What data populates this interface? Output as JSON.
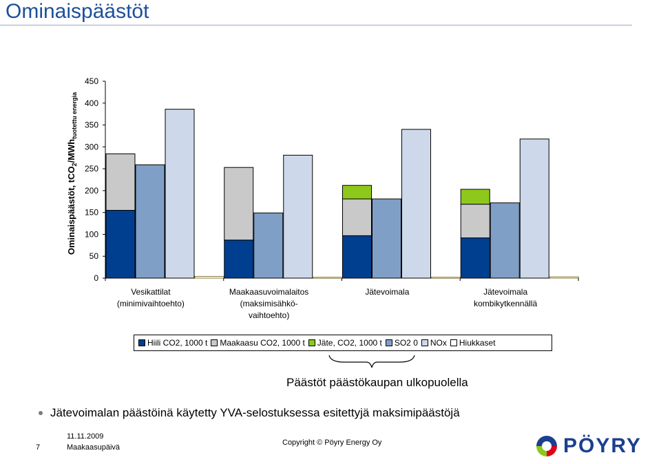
{
  "title": "Ominaispäästöt",
  "chart_data": {
    "type": "bar",
    "stacked_groups": true,
    "ylabel": "Ominaispäästöt, tCO2/MWhtuotettu energia",
    "ylabel_parts": {
      "main": "Ominaispäästöt, tCO",
      "sub1": "2",
      "mid": "/MWh",
      "sub2": "tuotettu energia"
    },
    "ylim": [
      0,
      450
    ],
    "yticks": [
      "0",
      "50",
      "100",
      "150",
      "200",
      "250",
      "300",
      "350",
      "400",
      "450"
    ],
    "categories": [
      [
        "Vesikattilat",
        "(minimivaihtoehto)"
      ],
      [
        "Maakaasuvoimalaitos",
        "(maksimisähkö-",
        "vaihtoehto)"
      ],
      [
        "Jätevoimala"
      ],
      [
        "Jätevoimala",
        "kombikytkennällä"
      ]
    ],
    "series": [
      {
        "name": "Hiili CO2, 1000 t",
        "color": "#003f8f",
        "values": [
          155,
          87,
          97,
          92
        ]
      },
      {
        "name": "Maakaasu CO2, 1000 t",
        "color": "#c9c9c9",
        "values": [
          129,
          166,
          84,
          77
        ]
      },
      {
        "name": "Jäte, CO2, 1000 t",
        "color": "#8ec81b",
        "values": [
          0,
          0,
          31,
          34
        ]
      },
      {
        "name": "SO2 0",
        "color": "#7f9fc7",
        "values": [
          259,
          149,
          181,
          172
        ]
      },
      {
        "name": "NOx",
        "color": "#cdd9ea",
        "values": [
          386,
          281,
          340,
          318
        ]
      },
      {
        "name": "Hiukkaset",
        "color": "#ffffff",
        "values": [
          4,
          2,
          2,
          3
        ]
      }
    ],
    "grid": false,
    "legend": "bottom"
  },
  "annotation": "Päästöt päästökaupan ulkopuolella",
  "bullet": "Jätevoimalan päästöinä käytetty YVA-selostuksessa esitettyjä maksimipäästöjä",
  "footer": {
    "page": "7",
    "date": "11.11.2009",
    "event": "Maakaasupäivä",
    "copyright": "Copyright © Pöyry Energy Oy"
  },
  "logo_text": "PÖYRY",
  "colors": {
    "title": "#1c4f9c",
    "logo": "#1c3f8f"
  }
}
